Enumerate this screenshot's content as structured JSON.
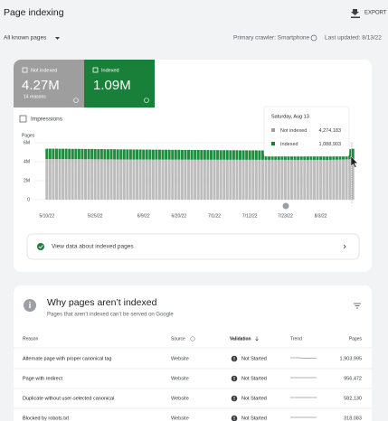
{
  "header": {
    "title": "Page indexing",
    "export": "EXPORT"
  },
  "filter": {
    "pages": "All known pages",
    "crawler": "Primary crawler: Smartphone",
    "updated": "Last updated: 8/13/22"
  },
  "summary": {
    "not_indexed": {
      "label": "Not indexed",
      "value": "4.27M",
      "sub": "14 reasons"
    },
    "indexed": {
      "label": "Indexed",
      "value": "1.09M"
    }
  },
  "impressions": "Impressions",
  "tooltip": {
    "date": "Saturday, Aug 13",
    "rows": [
      [
        "Not indexed",
        "4,274,183"
      ],
      [
        "Indexed",
        "1,088,903"
      ]
    ]
  },
  "view_link": "View data about indexed pages",
  "reasons": {
    "title": "Why pages aren’t indexed",
    "subtitle": "Pages that aren’t indexed can’t be served on Google",
    "columns": [
      "Reason",
      "Source",
      "Validation",
      "Trend",
      "Pages"
    ],
    "rows": [
      [
        "Alternate page with proper canonical tag",
        "Website",
        "Not Started",
        "1,903,995"
      ],
      [
        "Page with redirect",
        "Website",
        "Not Started",
        "956,472"
      ],
      [
        "Duplicate without user-selected canonical",
        "Website",
        "Not Started",
        "582,130"
      ],
      [
        "Blocked by robots.txt",
        "Website",
        "Not Started",
        "318,083"
      ]
    ]
  },
  "chart_data": {
    "type": "bar",
    "stacked": true,
    "y_label": "Pages",
    "categories": [
      "5/10/22",
      null,
      null,
      null,
      null,
      null,
      null,
      null,
      null,
      null,
      null,
      null,
      null,
      null,
      null,
      "5/25/22",
      null,
      null,
      null,
      null,
      null,
      null,
      null,
      null,
      null,
      null,
      null,
      null,
      null,
      null,
      "6/9/22",
      null,
      null,
      null,
      null,
      null,
      null,
      null,
      null,
      null,
      null,
      "6/20/22",
      null,
      null,
      null,
      null,
      null,
      null,
      null,
      null,
      null,
      null,
      "7/1/22",
      null,
      null,
      null,
      null,
      null,
      null,
      null,
      null,
      null,
      null,
      "7/12/22",
      null,
      null,
      null,
      null,
      null,
      null,
      null,
      null,
      null,
      null,
      "7/23/22",
      null,
      null,
      null,
      null,
      null,
      null,
      null,
      null,
      null,
      null,
      "8/3/22",
      null,
      null,
      null,
      null,
      null,
      null,
      null,
      null,
      null,
      null
    ],
    "series": [
      {
        "name": "Not indexed",
        "color": "#bdbdbd",
        "values": [
          4281000,
          4279000,
          4284000,
          4276000,
          4272000,
          4280000,
          4278000,
          4269000,
          4266000,
          4273000,
          4270000,
          4262000,
          4258000,
          4265000,
          4260000,
          4255000,
          4251000,
          4258000,
          4249000,
          4244000,
          4252000,
          4247000,
          4241000,
          4238000,
          4245000,
          4240000,
          4236000,
          4231000,
          4239000,
          4233000,
          4228000,
          4235000,
          4229000,
          4224000,
          4231000,
          4226000,
          4220000,
          4227000,
          4222000,
          4218000,
          4225000,
          4219000,
          4214000,
          4221000,
          4216000,
          4211000,
          4218000,
          4213000,
          4209000,
          4215000,
          4210000,
          4206000,
          4213000,
          4208000,
          4204000,
          4211000,
          4206000,
          4202000,
          4209000,
          4204000,
          4200000,
          4207000,
          4203000,
          4199000,
          4206000,
          4202000,
          4198000,
          4205000,
          4201000,
          4197000,
          4204000,
          4200000,
          4196000,
          4203000,
          4199000,
          4195000,
          4202000,
          4198000,
          4194000,
          4201000,
          4197000,
          4193000,
          4200000,
          4196000,
          4192000,
          4199000,
          4195000,
          4191000,
          4198000,
          4204000,
          4212000,
          4221000,
          4233000,
          4246000,
          4259000,
          4274183
        ]
      },
      {
        "name": "Indexed",
        "color": "#1e8e3e",
        "values": [
          1092000,
          1095000,
          1090000,
          1097000,
          1093000,
          1088000,
          1094000,
          1091000,
          1086000,
          1089000,
          1084000,
          1087000,
          1082000,
          1079000,
          1083000,
          1078000,
          1074000,
          1077000,
          1072000,
          1068000,
          1071000,
          1066000,
          1062000,
          1065000,
          1060000,
          1057000,
          1061000,
          1055000,
          1052000,
          1056000,
          1050000,
          1047000,
          1051000,
          1045000,
          1042000,
          1046000,
          1040000,
          1037000,
          1041000,
          1035000,
          1032000,
          1036000,
          1030000,
          1027000,
          1031000,
          1025000,
          1022000,
          1026000,
          1020000,
          1017000,
          1021000,
          1015000,
          1012000,
          1016000,
          1010000,
          1007000,
          1011000,
          1005000,
          1002000,
          1006000,
          1000000,
          997000,
          1001000,
          995000,
          992000,
          996000,
          990000,
          987000,
          991000,
          985000,
          982000,
          986000,
          980000,
          977000,
          981000,
          975000,
          972000,
          976000,
          970000,
          967000,
          971000,
          965000,
          962000,
          966000,
          960000,
          957000,
          961000,
          955000,
          958000,
          964000,
          972000,
          985000,
          1003000,
          1028000,
          1056000,
          1088903
        ]
      }
    ],
    "ylim": [
      0,
      6000000
    ],
    "yticks": [
      0,
      {
        "value": 2000000,
        "label": "2M"
      },
      {
        "value": 4000000,
        "label": "4M"
      },
      {
        "value": 6000000,
        "label": "6M"
      }
    ],
    "grid": true
  }
}
